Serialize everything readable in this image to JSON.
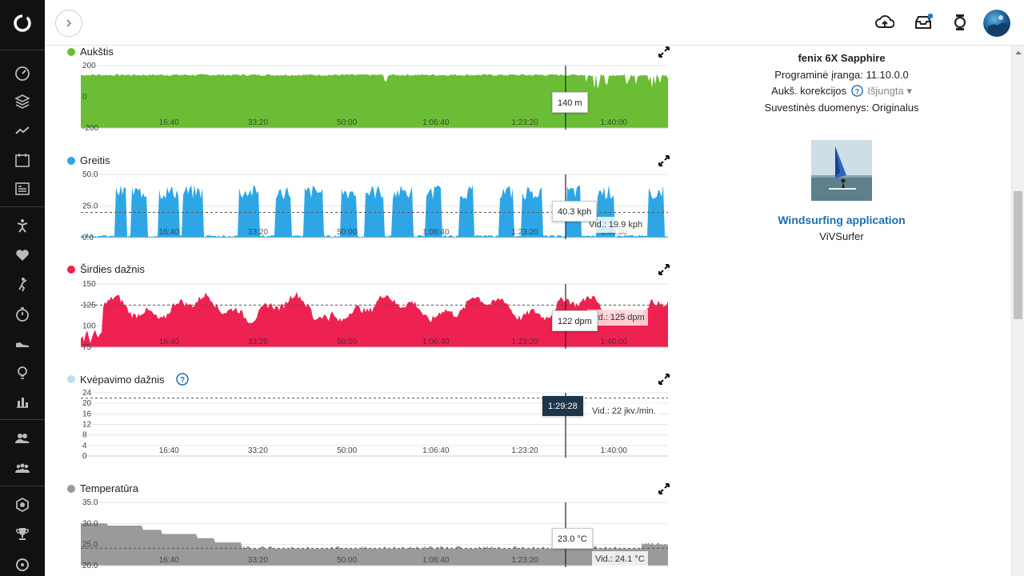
{
  "sidebar": {
    "logo_icon": "garmin-connect-logo-icon",
    "items": [
      {
        "icon": "dashboard-gauge-icon"
      },
      {
        "icon": "layers-icon"
      },
      {
        "icon": "activity-trend-icon"
      },
      {
        "icon": "calendar-icon",
        "text": "31"
      },
      {
        "icon": "news-feed-icon"
      },
      {
        "icon": "activity-person-icon"
      },
      {
        "icon": "heart-icon"
      },
      {
        "icon": "golf-icon"
      },
      {
        "icon": "stopwatch-icon"
      },
      {
        "icon": "shoe-icon"
      },
      {
        "icon": "lightbulb-icon"
      },
      {
        "icon": "bar-chart-icon"
      },
      {
        "icon": "connections-icon"
      },
      {
        "icon": "groups-icon"
      },
      {
        "icon": "badge-icon"
      },
      {
        "icon": "trophy-icon"
      },
      {
        "icon": "challenges-icon"
      }
    ]
  },
  "topbar": {
    "expand_icon": "chevron-right-icon",
    "icons": [
      "upload-cloud-icon",
      "inbox-icon",
      "watch-icon"
    ],
    "notification_color": "#1a7fd1"
  },
  "x_axis_ticks": [
    "16:40",
    "33:20",
    "50:00",
    "1:06:40",
    "1:23:20",
    "1:40:00"
  ],
  "cursor_time": "1:29:28",
  "charts": [
    {
      "key": "elevation",
      "title": "Aukštis",
      "color": "#6cbd36",
      "y_ticks": [
        "200",
        "0",
        "-200"
      ],
      "tooltip": "140 m",
      "avg": ""
    },
    {
      "key": "speed",
      "title": "Greitis",
      "color": "#2ea6e6",
      "y_ticks": [
        "50.0",
        "25.0",
        "0.0"
      ],
      "tooltip": "40.3 kph",
      "avg": "Vid.: 19.9 kph"
    },
    {
      "key": "heart",
      "title": "Širdies dažnis",
      "color": "#ee2251",
      "y_ticks": [
        "150",
        "125",
        "100",
        "75"
      ],
      "tooltip": "122 dpm",
      "avg": "Vid.: 125 dpm"
    },
    {
      "key": "resp",
      "title": "Kvėpavimo dažnis",
      "color": "#b9dff3",
      "y_ticks": [
        "24",
        "20",
        "16",
        "12",
        "8",
        "4",
        "0"
      ],
      "tooltip": "1:29:28",
      "avg": "Vid.: 22 įkv./min."
    },
    {
      "key": "temp",
      "title": "Temperatūra",
      "color": "#9a9a9a",
      "y_ticks": [
        "35.0",
        "30.0",
        "25.0",
        "20.0"
      ],
      "tooltip": "23.0 °C",
      "avg": "Vid.: 24.1 °C"
    }
  ],
  "chart_data": [
    {
      "type": "area",
      "title": "Aukštis",
      "ylim": [
        -200,
        200
      ],
      "x": [
        "16:40",
        "33:20",
        "50:00",
        "1:06:40",
        "1:23:20",
        "1:40:00"
      ],
      "cursor": {
        "x": "1:29:28",
        "y": 140,
        "label": "140 m"
      }
    },
    {
      "type": "area",
      "title": "Greitis",
      "ylim": [
        0,
        50
      ],
      "x": [
        "16:40",
        "33:20",
        "50:00",
        "1:06:40",
        "1:23:20",
        "1:40:00"
      ],
      "average": 19.9,
      "cursor": {
        "x": "1:29:28",
        "y": 40.3,
        "label": "40.3 kph"
      }
    },
    {
      "type": "area",
      "title": "Širdies dažnis",
      "ylim": [
        75,
        150
      ],
      "x": [
        "16:40",
        "33:20",
        "50:00",
        "1:06:40",
        "1:23:20",
        "1:40:00"
      ],
      "average": 125,
      "cursor": {
        "x": "1:29:28",
        "y": 122,
        "label": "122 dpm"
      }
    },
    {
      "type": "line",
      "title": "Kvėpavimo dažnis",
      "ylim": [
        0,
        24
      ],
      "x": [
        "16:40",
        "33:20",
        "50:00",
        "1:06:40",
        "1:23:20",
        "1:40:00"
      ],
      "average": 22
    },
    {
      "type": "area",
      "title": "Temperatūra",
      "ylim": [
        20,
        35
      ],
      "x": [
        "16:40",
        "33:20",
        "50:00",
        "1:06:40",
        "1:23:20",
        "1:40:00"
      ],
      "average": 24.1,
      "cursor": {
        "x": "1:29:28",
        "y": 23.0,
        "label": "23.0 °C"
      }
    }
  ],
  "device": {
    "name": "fenix 6X Sapphire",
    "software_label": "Programinė įranga: 11.10.0.0",
    "elev_corr_label": "Aukš. korekcijos",
    "elev_corr_value": "Išjungta",
    "summary_label": "Suvestinės duomenys: Originalus"
  },
  "app": {
    "name": "Windsurfing application",
    "developer": "ViVSurfer",
    "link_color": "#1a6fb5"
  }
}
